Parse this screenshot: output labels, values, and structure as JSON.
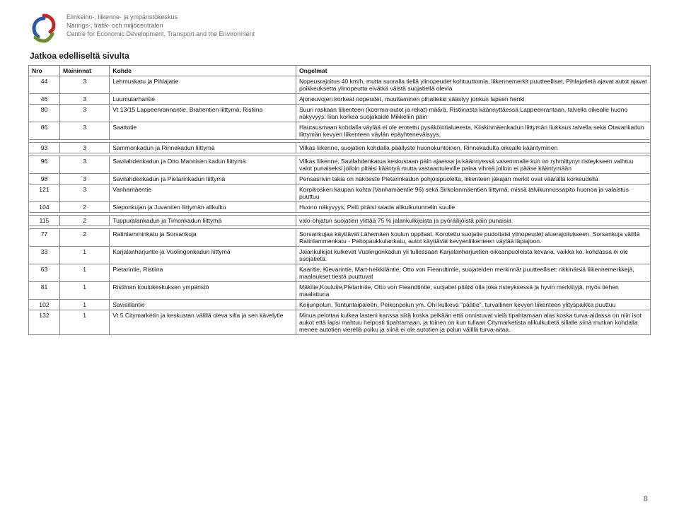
{
  "org": {
    "line1": "Elinkeino-, liikenne- ja ympäristökeskus",
    "line2": "Närings-, trafik- och miljöcentralen",
    "line3": "Centre for Economic Development, Transport and the Environment"
  },
  "continuation": "Jatkoa edelliseltä sivulta",
  "columns": {
    "nro": "Nro",
    "maininnat": "Maininnat",
    "kohde": "Kohde",
    "ongelmat": "Ongelmat"
  },
  "groups": [
    [
      {
        "nro": "44",
        "main": "3",
        "kohde": "Lehmuskatu ja Pihlajatie",
        "ong": "Nopeusrajoitus 40 km/h, mutta suoralla tiellä ylinopeudet kohtuuttomia, liikennemerkit puutteelliset, Pihlajatietä ajavat autot ajavat poikkeuksetta ylinopeutta eivätkä väistä suojatiellä olevia"
      },
      {
        "nro": "46",
        "main": "3",
        "kohde": "Luumutarhantie",
        "ong": "Ajoneuvojen korkeat nopeudet, muuttaminen pihatieksi säästyy jonkun lapsen henki"
      },
      {
        "nro": "80",
        "main": "3",
        "kohde": "Vt 13/15 Lappeenrannantie, Brahentien liittymä, Ristiina",
        "ong": "Suuri raskaan liikenteen (kuorma-autot ja rekat) määrä, Ristiinasta käännyttäessä Lappeenrantaan, talvella oikealle huono näkyvyys: liian korkea suojakaide Mikkeliin päin"
      },
      {
        "nro": "86",
        "main": "3",
        "kohde": "Saattotie",
        "ong": "Hautausmaan kohdalla väylää ei ole erotettu pysäköintialueesta, Kiiskinmäenkadun liittymän liukkaus talvella sekä Otavankadun liittymän kevyen liikenteen väylän epäyhteneväisyys,"
      }
    ],
    [
      {
        "nro": "93",
        "main": "3",
        "kohde": "Sammonkadun ja Rinnekadun liittymä",
        "ong": "Vilkas liikenne, suojatien kohdalla päällyste huonokuntoinen, Rinnekadulta oikealle kääntyminen"
      }
    ],
    [
      {
        "nro": "96",
        "main": "3",
        "kohde": "Savilahdenkadun ja Otto Mannisen kadun liittymä",
        "ong": "Vilkas liikenne, Savilahdenkatua keskustaan päin ajaessa ja käännyessä vasemmalle kun on ryhmittynyt risteykseen vaihtuu valot punaiseksi jolloin pitäisi kääntyä mutta vastaantuleville palaa vihreä jolloin ei pääse kääntymään"
      },
      {
        "nro": "98",
        "main": "3",
        "kohde": "Savilahdenkadun ja Pietarinkadun liittymä",
        "ong": "Pensasrivin takia on näköeste Pietarinkadun pohjoispuolelta, liikenteen jakajan merkit ovat väärällä korkeudella"
      },
      {
        "nro": "121",
        "main": "3",
        "kohde": "Vanhamäentie",
        "ong": "Korpikosken kaupan kohta (Vanhamäentie 96) sekä Sirkolanmäentien liittymä, missä talvikunnossapito huonoa ja valaistus puuttuu"
      },
      {
        "nro": "104",
        "main": "2",
        "kohde": "Sieponkujan ja Juvantien liittymän alikulku",
        "ong": "Huono näkyvyys, Peili pitäisi saada alikulkutunnelin suulle"
      }
    ],
    [
      {
        "nro": "115",
        "main": "2",
        "kohde": "Tuppuralankadun ja Timonkadun liittymä",
        "ong": "valo-ohjatun suojatien ylittää 75 % jalankulkijoista ja pyöräilijöistä päin punaisia"
      }
    ],
    [
      {
        "nro": "77",
        "main": "2",
        "kohde": "Ratinlamminkatu ja Sorsankuja",
        "ong": "Sorsankujaa käyttävät Lähemäen koulun oppilaat. Korotettu suojatie pudottaisi ylinopeudet aluerajoitukseen. Sorsankuja välillä Ratinlammenkatu - Peltopaukkulankatu, autot käyttävät kevyenliikenteen väylää läpiajoon."
      },
      {
        "nro": "33",
        "main": "1",
        "kohde": "Karjalanharjuntie ja Vuolingonkadun liittymä",
        "ong": "Jalankulkijat kulkevat Vuolingonkadun yli tullessaan Karjalanharjuntien oikeanpuoleista kevaria, vaikka ko. kohdassa ei ole suojatietä."
      },
      {
        "nro": "63",
        "main": "1",
        "kohde": "Pietarintie, Ristiina",
        "ong": "Kaaritie, Kievarintie, Mart-heikkiläntie, Otto von Fieandtintie, suojateiden merkinnät puutteelliset: rikkinäisiä liikennemerkkejä, maalaukset tiestä puuttuvat"
      },
      {
        "nro": "81",
        "main": "1",
        "kohde": "Ristiinan koulukeskuksen ympäristö",
        "ong": "Mäkitie,Koulutie,Pietarintie, Otto von Fieandtintie, suojatiet pitäisi olla joka risteyksessä ja hyvin merkittyjä, myös tiehen maalattuna"
      },
      {
        "nro": "102",
        "main": "1",
        "kohde": "Savisillantie",
        "ong": "Keijunpolun, Tontuntaipaleen, Peikonpolun ym. Ohi kulkeva \"päätie\", turvallinen kevyen liikenteen ylityspaikka puuttuu"
      },
      {
        "nro": "132",
        "main": "1",
        "kohde": "Vt 5 Citymarketin ja keskustan välillä oleva silta ja sen kävelytie",
        "ong": "Minua pelottaa kulkea lasteni kanssa siitä koska pelkään että onnistuvat vielä tipahtamaan alas koska turva-aidassa on niin isot aukot että lapsi mahtuu helposti tipahtamaan, ja toinen on kun tullaan Citymarketista alikulkutietä sillalle siinä mutkan kohdalla menee autotien vierellä polku ja siinä ei ole autotien ja polun välillä turva-aitaa."
      }
    ]
  ],
  "page_number": "8",
  "logo_colors": {
    "red": "#c22a2a",
    "green": "#6b8f2a",
    "blue": "#2a5aa0"
  }
}
